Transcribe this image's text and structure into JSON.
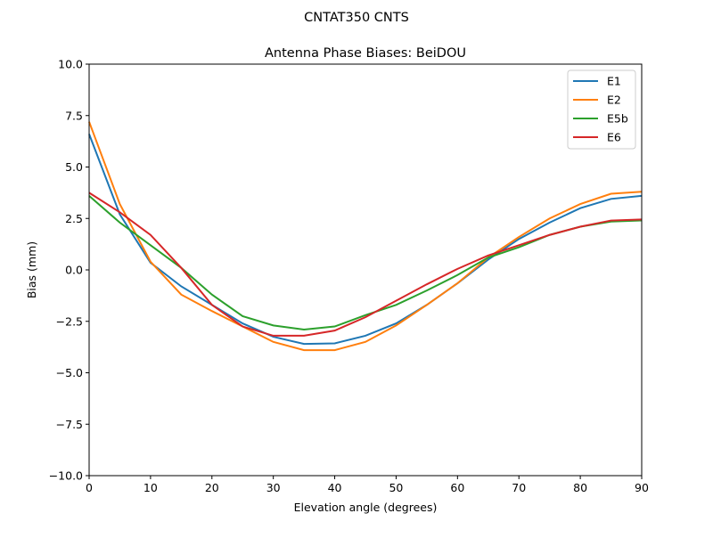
{
  "suptitle": "CNTAT350        CNTS",
  "chart_data": {
    "type": "line",
    "title": "Antenna Phase Biases: BeiDOU",
    "xlabel": "Elevation angle (degrees)",
    "ylabel": "Bias (mm)",
    "xlim": [
      0,
      90
    ],
    "ylim": [
      -10,
      10
    ],
    "xticks": [
      0,
      10,
      20,
      30,
      40,
      50,
      60,
      70,
      80,
      90
    ],
    "xtick_labels": [
      "0",
      "10",
      "20",
      "30",
      "40",
      "50",
      "60",
      "70",
      "80",
      "90"
    ],
    "yticks": [
      -10,
      -7.5,
      -5,
      -2.5,
      0,
      2.5,
      5,
      7.5,
      10
    ],
    "ytick_labels": [
      "−10.0",
      "−7.5",
      "−5.0",
      "−2.5",
      "0.0",
      "2.5",
      "5.0",
      "7.5",
      "10.0"
    ],
    "grid": false,
    "legend_position": "top-right",
    "x": [
      0,
      5,
      10,
      15,
      20,
      25,
      30,
      35,
      40,
      45,
      50,
      55,
      60,
      65,
      70,
      75,
      80,
      85,
      90
    ],
    "series": [
      {
        "name": "E1",
        "color": "#1f77b4",
        "values": [
          6.6,
          2.7,
          0.35,
          -0.8,
          -1.7,
          -2.6,
          -3.25,
          -3.6,
          -3.57,
          -3.2,
          -2.6,
          -1.7,
          -0.65,
          0.5,
          1.5,
          2.3,
          3.0,
          3.45,
          3.6
        ]
      },
      {
        "name": "E2",
        "color": "#ff7f0e",
        "values": [
          7.2,
          3.2,
          0.4,
          -1.2,
          -2.0,
          -2.75,
          -3.5,
          -3.9,
          -3.9,
          -3.5,
          -2.7,
          -1.7,
          -0.65,
          0.6,
          1.6,
          2.5,
          3.2,
          3.7,
          3.8
        ]
      },
      {
        "name": "E5b",
        "color": "#2ca02c",
        "values": [
          3.6,
          2.3,
          1.2,
          0.1,
          -1.2,
          -2.25,
          -2.7,
          -2.9,
          -2.75,
          -2.2,
          -1.7,
          -1.0,
          -0.25,
          0.6,
          1.1,
          1.7,
          2.1,
          2.35,
          2.4
        ]
      },
      {
        "name": "E6",
        "color": "#d62728",
        "values": [
          3.75,
          2.8,
          1.7,
          0.1,
          -1.7,
          -2.75,
          -3.2,
          -3.2,
          -2.95,
          -2.3,
          -1.5,
          -0.7,
          0.05,
          0.7,
          1.2,
          1.7,
          2.1,
          2.4,
          2.45
        ]
      }
    ]
  }
}
